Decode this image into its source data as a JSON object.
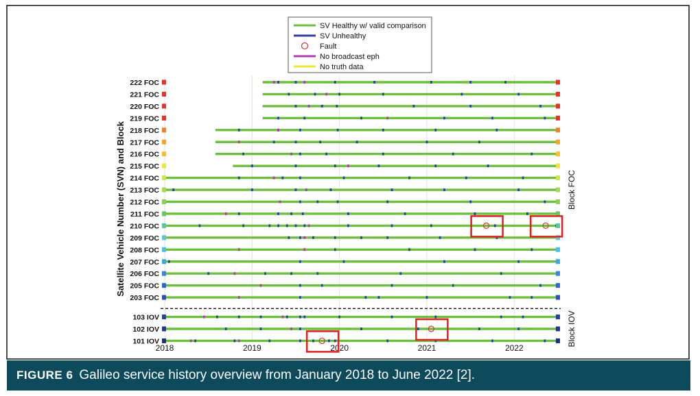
{
  "figure": {
    "label": "FIGURE 6",
    "caption": "Galileo service history overview from January 2018 to June 2022 [2]."
  },
  "colors": {
    "healthy": "#6cbf3c",
    "unhealthy": "#2d3fa0",
    "fault": "#e03030",
    "no_eph": "#b23bb2",
    "no_truth": "#f2e634",
    "highlight_box": "#e02020",
    "caption_bar": "#0d4a5c"
  },
  "chart_data": {
    "type": "timeline",
    "title": "",
    "xlabel": "",
    "ylabel": "Satellite Vehicle Number (SVN) and Block",
    "xlim": [
      2018.0,
      2022.5
    ],
    "x_ticks": [
      "2018",
      "2019",
      "2020",
      "2021",
      "2022"
    ],
    "x_tick_values": [
      2018,
      2019,
      2020,
      2021,
      2022
    ],
    "grid": true,
    "legend_position": "top-center",
    "legend": [
      {
        "name": "SV Healthy w/ valid comparison",
        "marker": "line",
        "color": "#6cbf3c"
      },
      {
        "name": "SV Unhealthy",
        "marker": "line",
        "color": "#2d3fa0"
      },
      {
        "name": "Fault",
        "marker": "circle",
        "color": "#e03030"
      },
      {
        "name": "No broadcast eph",
        "marker": "line",
        "color": "#b23bb2"
      },
      {
        "name": "No truth data",
        "marker": "line",
        "color": "#f2e634"
      }
    ],
    "block_labels": [
      {
        "label": "Block FOC",
        "from": "222 FOC",
        "to": "203 FOC"
      },
      {
        "label": "Block IOV",
        "from": "103 IOV",
        "to": "101 IOV"
      }
    ],
    "satellites": [
      {
        "label": "222 FOC",
        "start": 2019.12,
        "end_color": "#e6332a",
        "unhealthy": [
          2019.3,
          2019.5,
          2019.95,
          2020.4,
          2021.05,
          2021.5,
          2021.9
        ],
        "no_eph": [
          2019.25,
          2019.6
        ]
      },
      {
        "label": "221 FOC",
        "start": 2019.12,
        "end_color": "#e6332a",
        "unhealthy": [
          2019.42,
          2019.72,
          2020.0,
          2020.5,
          2021.4,
          2022.05
        ],
        "no_eph": [
          2019.85
        ]
      },
      {
        "label": "220 FOC",
        "start": 2019.12,
        "end_color": "#e6332a",
        "unhealthy": [
          2019.5,
          2019.8,
          2019.97,
          2020.85,
          2021.5,
          2022.3
        ],
        "no_eph": [
          2019.65
        ]
      },
      {
        "label": "219 FOC",
        "start": 2019.12,
        "end_color": "#e6332a",
        "unhealthy": [
          2019.3,
          2019.6,
          2020.25,
          2021.2,
          2021.75,
          2022.35
        ],
        "no_eph": [
          2020.55
        ]
      },
      {
        "label": "218 FOC",
        "start": 2018.58,
        "end_color": "#f07f2a",
        "unhealthy": [
          2018.85,
          2019.3,
          2019.55,
          2019.98,
          2020.5,
          2021.1,
          2021.8
        ],
        "no_eph": [
          2019.3
        ]
      },
      {
        "label": "217 FOC",
        "start": 2018.58,
        "end_color": "#f5a32a",
        "unhealthy": [
          2019.25,
          2019.5,
          2019.78,
          2020.2,
          2021.0,
          2021.6
        ],
        "no_eph": [
          2018.85
        ]
      },
      {
        "label": "216 FOC",
        "start": 2018.58,
        "end_color": "#f5c02a",
        "unhealthy": [
          2018.9,
          2019.55,
          2019.85,
          2020.5,
          2021.3,
          2022.2
        ],
        "no_eph": [
          2019.45
        ]
      },
      {
        "label": "215 FOC",
        "start": 2018.78,
        "end_color": "#f2e634",
        "unhealthy": [
          2019.0,
          2019.5,
          2019.95,
          2020.45,
          2021.1,
          2021.7
        ],
        "no_eph": [
          2020.1
        ]
      },
      {
        "label": "214 FOC",
        "start": 2018.0,
        "end_color": "#cfe34a",
        "unhealthy": [
          2018.85,
          2019.35,
          2019.55,
          2020.05,
          2020.8,
          2021.45,
          2022.1
        ],
        "no_eph": [
          2019.25
        ]
      },
      {
        "label": "213 FOC",
        "start": 2018.0,
        "end_color": "#a8d850",
        "unhealthy": [
          2018.1,
          2019.0,
          2019.5,
          2019.9,
          2020.6,
          2021.2,
          2022.05
        ],
        "no_eph": [
          2019.62
        ]
      },
      {
        "label": "212 FOC",
        "start": 2018.0,
        "end_color": "#8ccf5a",
        "unhealthy": [
          2019.55,
          2019.75,
          2019.98,
          2020.55,
          2021.5,
          2022.35
        ],
        "no_eph": [
          2019.32
        ]
      },
      {
        "label": "211 FOC",
        "start": 2018.0,
        "end_color": "#6cc46a",
        "unhealthy": [
          2018.85,
          2019.3,
          2019.45,
          2019.58,
          2020.1,
          2020.75,
          2021.55,
          2022.15
        ],
        "no_eph": [
          2018.7
        ]
      },
      {
        "label": "210 FOC",
        "start": 2018.0,
        "end_color": "#5cc4a0",
        "unhealthy": [
          2018.4,
          2018.9,
          2019.2,
          2019.3,
          2019.4,
          2019.5,
          2019.6,
          2020.1,
          2020.6,
          2021.05,
          2021.78,
          2022.48
        ],
        "no_eph": [
          2019.65
        ],
        "faults": [
          2021.68,
          2022.36
        ]
      },
      {
        "label": "209 FOC",
        "start": 2018.0,
        "end_color": "#5cc4d8",
        "unhealthy": [
          2019.42,
          2019.55,
          2019.7,
          2019.95,
          2020.25,
          2020.55,
          2021.15,
          2021.8
        ],
        "no_eph": [
          2019.6
        ]
      },
      {
        "label": "208 FOC",
        "start": 2018.0,
        "end_color": "#4ec0ee",
        "unhealthy": [
          2019.95,
          2020.8,
          2021.55,
          2022.2
        ],
        "no_eph": [
          2018.85,
          2019.6
        ]
      },
      {
        "label": "207 FOC",
        "start": 2018.0,
        "end_color": "#3fa6e6",
        "unhealthy": [
          2018.05,
          2019.55,
          2020.05,
          2021.2,
          2022.05
        ],
        "no_eph": []
      },
      {
        "label": "206 FOC",
        "start": 2018.0,
        "end_color": "#3a86dc",
        "unhealthy": [
          2018.5,
          2019.15,
          2019.45,
          2019.75,
          2020.7,
          2021.85
        ],
        "no_eph": [
          2018.8
        ]
      },
      {
        "label": "205 FOC",
        "start": 2018.0,
        "end_color": "#3066d0",
        "unhealthy": [
          2019.55,
          2019.8,
          2020.6,
          2021.3,
          2022.3
        ],
        "no_eph": [
          2019.1
        ]
      },
      {
        "label": "203 FOC",
        "start": 2018.0,
        "end_color": "#2d50c0",
        "unhealthy": [
          2019.55,
          2020.3,
          2020.45,
          2021.0,
          2021.95,
          2022.2
        ],
        "no_eph": [
          2018.85
        ]
      },
      {
        "label": "103 IOV",
        "start": 2018.0,
        "end_color": "#2d3fa0",
        "unhealthy": [
          2018.6,
          2018.85,
          2019.1,
          2019.4,
          2019.55,
          2019.6,
          2020.0,
          2020.6,
          2021.1,
          2021.85,
          2022.1
        ],
        "no_eph": [
          2018.45,
          2019.35
        ]
      },
      {
        "label": "102 IOV",
        "start": 2018.0,
        "end_color": "#2a3590",
        "unhealthy": [
          2018.7,
          2019.1,
          2019.55,
          2020.25,
          2020.9,
          2021.6,
          2022.05
        ],
        "no_eph": [
          2019.45
        ],
        "faults": [
          2021.05
        ]
      },
      {
        "label": "101 IOV",
        "start": 2018.0,
        "end_color": "#223080",
        "unhealthy": [
          2018.35,
          2018.8,
          2019.2,
          2019.55,
          2019.7,
          2019.88,
          2019.95,
          2020.55,
          2021.1,
          2021.75,
          2022.35
        ],
        "no_eph": [
          2018.3,
          2018.85
        ],
        "faults": [
          2019.8
        ]
      }
    ],
    "highlighted": [
      {
        "label": "210 FOC",
        "x": 2021.68
      },
      {
        "label": "210 FOC",
        "x": 2022.36
      },
      {
        "label": "102 IOV",
        "x": 2021.05
      },
      {
        "label": "101 IOV",
        "x": 2019.8
      }
    ]
  }
}
